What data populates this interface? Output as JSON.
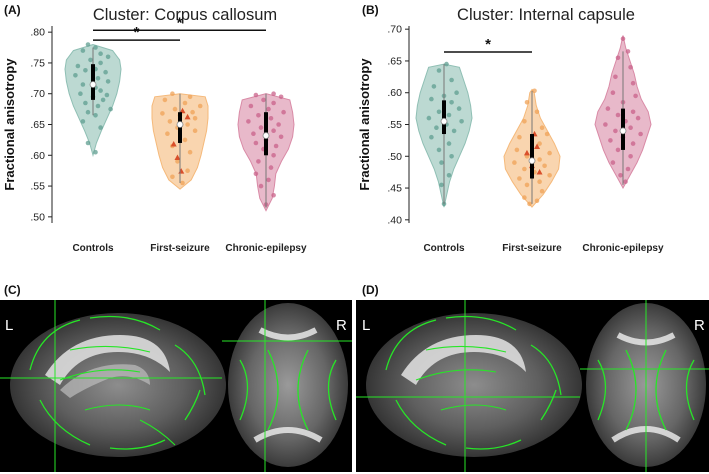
{
  "figure": {
    "panel_letters": {
      "a": "(A)",
      "b": "(B)",
      "c": "(C)",
      "d": "(D)"
    },
    "image_labels": {
      "c_left": "L",
      "c_right": "R",
      "d_left": "L",
      "d_right": "R"
    }
  },
  "chart_data": [
    {
      "type": "violin",
      "panel": "A",
      "title": "Cluster: Corpus callosum",
      "xlabel": "",
      "ylabel": "Fractional anisotropy",
      "ylim": [
        0.49,
        0.81
      ],
      "yticks": [
        0.5,
        0.55,
        0.6,
        0.65,
        0.7,
        0.75,
        0.8
      ],
      "ytick_labels": [
        ".50",
        ".55",
        ".60",
        ".65",
        ".70",
        ".75",
        ".80"
      ],
      "categories": [
        "Controls",
        "First-seizure",
        "Chronic-epilepsy"
      ],
      "colors": [
        "#8fbfb4",
        "#f5b97a",
        "#d98aa6"
      ],
      "point_colors": [
        "#5f9e90",
        "#efa257",
        "#c9628a"
      ],
      "violins": [
        {
          "min": 0.6,
          "max": 0.78,
          "profile": [
            [
              0.6,
              0.0
            ],
            [
              0.62,
              0.12
            ],
            [
              0.64,
              0.3
            ],
            [
              0.66,
              0.5
            ],
            [
              0.68,
              0.7
            ],
            [
              0.7,
              0.85
            ],
            [
              0.72,
              0.95
            ],
            [
              0.74,
              1.0
            ],
            [
              0.755,
              0.95
            ],
            [
              0.77,
              0.7
            ],
            [
              0.78,
              0.0
            ]
          ],
          "median": 0.715,
          "q1": 0.69,
          "q3": 0.748,
          "whisker": [
            0.665,
            0.775
          ]
        },
        {
          "min": 0.545,
          "max": 0.7,
          "profile": [
            [
              0.545,
              0.0
            ],
            [
              0.56,
              0.4
            ],
            [
              0.58,
              0.62
            ],
            [
              0.6,
              0.75
            ],
            [
              0.62,
              0.85
            ],
            [
              0.64,
              0.95
            ],
            [
              0.66,
              1.0
            ],
            [
              0.68,
              1.0
            ],
            [
              0.695,
              0.9
            ],
            [
              0.7,
              0.0
            ]
          ],
          "median": 0.65,
          "q1": 0.62,
          "q3": 0.67,
          "whisker": [
            0.555,
            0.7
          ]
        },
        {
          "min": 0.51,
          "max": 0.7,
          "profile": [
            [
              0.51,
              0.0
            ],
            [
              0.53,
              0.22
            ],
            [
              0.55,
              0.3
            ],
            [
              0.57,
              0.35
            ],
            [
              0.59,
              0.55
            ],
            [
              0.61,
              0.8
            ],
            [
              0.63,
              0.95
            ],
            [
              0.65,
              1.0
            ],
            [
              0.67,
              0.95
            ],
            [
              0.69,
              0.85
            ],
            [
              0.7,
              0.0
            ]
          ],
          "median": 0.632,
          "q1": 0.6,
          "q3": 0.67,
          "whisker": [
            0.515,
            0.7
          ]
        }
      ],
      "points": [
        [
          [
            0.78,
            -0.2
          ],
          [
            0.775,
            0.1
          ],
          [
            0.77,
            -0.4
          ],
          [
            0.765,
            0.3
          ],
          [
            0.76,
            0.6
          ],
          [
            0.755,
            -0.1
          ],
          [
            0.75,
            0.3
          ],
          [
            0.745,
            -0.6
          ],
          [
            0.74,
            0.1
          ],
          [
            0.738,
            -0.3
          ],
          [
            0.735,
            0.5
          ],
          [
            0.73,
            -0.7
          ],
          [
            0.725,
            0.2
          ],
          [
            0.72,
            0.6
          ],
          [
            0.715,
            -0.4
          ],
          [
            0.71,
            0.1
          ],
          [
            0.705,
            0.3
          ],
          [
            0.7,
            -0.5
          ],
          [
            0.698,
            0.55
          ],
          [
            0.695,
            0.0
          ],
          [
            0.69,
            0.4
          ],
          [
            0.685,
            -0.3
          ],
          [
            0.68,
            0.2
          ],
          [
            0.675,
            0.7
          ],
          [
            0.67,
            -0.2
          ],
          [
            0.665,
            0.1
          ],
          [
            0.655,
            -0.4
          ],
          [
            0.645,
            0.3
          ],
          [
            0.62,
            -0.2
          ],
          [
            0.605,
            0.1
          ]
        ],
        [
          [
            0.7,
            -0.3
          ],
          [
            0.695,
            0.4
          ],
          [
            0.69,
            -0.6
          ],
          [
            0.685,
            0.2
          ],
          [
            0.68,
            0.8
          ],
          [
            0.675,
            -0.2
          ],
          [
            0.67,
            0.5
          ],
          [
            0.668,
            -0.7
          ],
          [
            0.665,
            0.0
          ],
          [
            0.66,
            0.6
          ],
          [
            0.655,
            -0.4
          ],
          [
            0.65,
            0.3
          ],
          [
            0.645,
            -0.1
          ],
          [
            0.64,
            0.6
          ],
          [
            0.635,
            -0.5
          ],
          [
            0.625,
            0.2
          ],
          [
            0.615,
            -0.3
          ],
          [
            0.605,
            0.4
          ],
          [
            0.59,
            -0.1
          ],
          [
            0.575,
            0.3
          ],
          [
            0.565,
            -0.3
          ],
          [
            0.555,
            0.1
          ]
        ],
        [
          [
            0.7,
            0.3
          ],
          [
            0.698,
            -0.4
          ],
          [
            0.695,
            0.6
          ],
          [
            0.69,
            -0.1
          ],
          [
            0.685,
            0.3
          ],
          [
            0.68,
            -0.6
          ],
          [
            0.675,
            0.1
          ],
          [
            0.67,
            0.7
          ],
          [
            0.665,
            -0.3
          ],
          [
            0.66,
            0.2
          ],
          [
            0.655,
            -0.7
          ],
          [
            0.65,
            0.5
          ],
          [
            0.645,
            -0.2
          ],
          [
            0.64,
            0.3
          ],
          [
            0.635,
            -0.5
          ],
          [
            0.63,
            0.6
          ],
          [
            0.625,
            0.0
          ],
          [
            0.62,
            -0.4
          ],
          [
            0.615,
            0.4
          ],
          [
            0.61,
            -0.1
          ],
          [
            0.6,
            0.3
          ],
          [
            0.59,
            -0.3
          ],
          [
            0.58,
            0.2
          ],
          [
            0.57,
            -0.4
          ],
          [
            0.56,
            0.1
          ],
          [
            0.55,
            -0.2
          ],
          [
            0.535,
            0.3
          ],
          [
            0.52,
            0.0
          ]
        ]
      ],
      "triangles": [
        null,
        [
          [
            0.672,
            0.1
          ],
          [
            0.662,
            0.3
          ],
          [
            0.618,
            -0.25
          ],
          [
            0.596,
            -0.1
          ],
          [
            0.574,
            0.05
          ]
        ],
        null
      ],
      "sig_bars": [
        {
          "from": 0,
          "to": 2,
          "y": 0.803,
          "label": "*"
        },
        {
          "from": 0,
          "to": 1,
          "y": 0.787,
          "label": "*"
        }
      ]
    },
    {
      "type": "violin",
      "panel": "B",
      "title": "Cluster: Internal capsule",
      "xlabel": "",
      "ylabel": "Fractional anisotropy",
      "ylim": [
        0.395,
        0.705
      ],
      "yticks": [
        0.4,
        0.45,
        0.5,
        0.55,
        0.6,
        0.65,
        0.7
      ],
      "ytick_labels": [
        ".40",
        ".45",
        ".50",
        ".55",
        ".60",
        ".65",
        ".70"
      ],
      "categories": [
        "Controls",
        "First-seizure",
        "Chronic-epilepsy"
      ],
      "colors": [
        "#8fbfb4",
        "#f5b97a",
        "#d98aa6"
      ],
      "point_colors": [
        "#5f9e90",
        "#efa257",
        "#c9628a"
      ],
      "violins": [
        {
          "min": 0.42,
          "max": 0.645,
          "profile": [
            [
              0.42,
              0.0
            ],
            [
              0.44,
              0.1
            ],
            [
              0.46,
              0.2
            ],
            [
              0.48,
              0.35
            ],
            [
              0.5,
              0.55
            ],
            [
              0.52,
              0.75
            ],
            [
              0.54,
              0.9
            ],
            [
              0.56,
              1.0
            ],
            [
              0.58,
              0.95
            ],
            [
              0.6,
              0.85
            ],
            [
              0.62,
              0.7
            ],
            [
              0.64,
              0.55
            ],
            [
              0.645,
              0.0
            ]
          ],
          "median": 0.555,
          "q1": 0.535,
          "q3": 0.588,
          "whisker": [
            0.425,
            0.645
          ]
        },
        {
          "min": 0.42,
          "max": 0.605,
          "profile": [
            [
              0.42,
              0.0
            ],
            [
              0.44,
              0.4
            ],
            [
              0.46,
              0.7
            ],
            [
              0.48,
              0.95
            ],
            [
              0.5,
              1.0
            ],
            [
              0.52,
              0.8
            ],
            [
              0.54,
              0.55
            ],
            [
              0.56,
              0.3
            ],
            [
              0.58,
              0.15
            ],
            [
              0.6,
              0.08
            ],
            [
              0.605,
              0.0
            ]
          ],
          "median": 0.493,
          "q1": 0.465,
          "q3": 0.535,
          "whisker": [
            0.425,
            0.603
          ]
        },
        {
          "min": 0.45,
          "max": 0.69,
          "profile": [
            [
              0.45,
              0.0
            ],
            [
              0.47,
              0.25
            ],
            [
              0.49,
              0.5
            ],
            [
              0.51,
              0.7
            ],
            [
              0.53,
              0.85
            ],
            [
              0.55,
              1.0
            ],
            [
              0.57,
              0.9
            ],
            [
              0.59,
              0.65
            ],
            [
              0.61,
              0.5
            ],
            [
              0.63,
              0.4
            ],
            [
              0.65,
              0.25
            ],
            [
              0.67,
              0.1
            ],
            [
              0.69,
              0.0
            ]
          ],
          "median": 0.54,
          "q1": 0.51,
          "q3": 0.575,
          "whisker": [
            0.455,
            0.665
          ]
        }
      ],
      "points": [
        [
          [
            0.645,
            0.1
          ],
          [
            0.635,
            -0.2
          ],
          [
            0.62,
            0.3
          ],
          [
            0.61,
            -0.4
          ],
          [
            0.6,
            0.5
          ],
          [
            0.595,
            0.0
          ],
          [
            0.59,
            -0.5
          ],
          [
            0.585,
            0.3
          ],
          [
            0.575,
            0.6
          ],
          [
            0.57,
            -0.2
          ],
          [
            0.565,
            0.2
          ],
          [
            0.56,
            -0.6
          ],
          [
            0.555,
            0.7
          ],
          [
            0.55,
            0.1
          ],
          [
            0.545,
            -0.3
          ],
          [
            0.54,
            0.4
          ],
          [
            0.53,
            -0.5
          ],
          [
            0.52,
            0.2
          ],
          [
            0.51,
            -0.2
          ],
          [
            0.5,
            0.3
          ],
          [
            0.49,
            -0.1
          ],
          [
            0.47,
            0.2
          ],
          [
            0.455,
            -0.1
          ],
          [
            0.425,
            0.0
          ]
        ],
        [
          [
            0.603,
            0.1
          ],
          [
            0.585,
            -0.2
          ],
          [
            0.57,
            0.2
          ],
          [
            0.555,
            -0.3
          ],
          [
            0.545,
            0.4
          ],
          [
            0.535,
            0.6
          ],
          [
            0.53,
            -0.5
          ],
          [
            0.52,
            0.3
          ],
          [
            0.51,
            -0.6
          ],
          [
            0.505,
            0.7
          ],
          [
            0.5,
            -0.2
          ],
          [
            0.495,
            0.3
          ],
          [
            0.49,
            -0.7
          ],
          [
            0.485,
            0.5
          ],
          [
            0.48,
            -0.3
          ],
          [
            0.475,
            0.1
          ],
          [
            0.47,
            0.7
          ],
          [
            0.465,
            -0.5
          ],
          [
            0.46,
            0.3
          ],
          [
            0.455,
            -0.2
          ],
          [
            0.445,
            0.4
          ],
          [
            0.435,
            -0.3
          ],
          [
            0.43,
            0.2
          ],
          [
            0.425,
            -0.1
          ]
        ],
        [
          [
            0.685,
            0.0
          ],
          [
            0.665,
            0.2
          ],
          [
            0.655,
            -0.2
          ],
          [
            0.64,
            0.3
          ],
          [
            0.625,
            -0.3
          ],
          [
            0.615,
            0.4
          ],
          [
            0.6,
            -0.4
          ],
          [
            0.595,
            0.5
          ],
          [
            0.585,
            0.0
          ],
          [
            0.575,
            -0.6
          ],
          [
            0.57,
            0.4
          ],
          [
            0.565,
            -0.2
          ],
          [
            0.56,
            0.6
          ],
          [
            0.555,
            0.1
          ],
          [
            0.55,
            -0.7
          ],
          [
            0.545,
            0.3
          ],
          [
            0.54,
            -0.3
          ],
          [
            0.535,
            0.7
          ],
          [
            0.53,
            0.0
          ],
          [
            0.525,
            -0.5
          ],
          [
            0.52,
            0.4
          ],
          [
            0.51,
            -0.2
          ],
          [
            0.5,
            0.3
          ],
          [
            0.49,
            -0.4
          ],
          [
            0.48,
            0.2
          ],
          [
            0.47,
            -0.1
          ],
          [
            0.46,
            0.1
          ]
        ]
      ],
      "triangles": [
        null,
        [
          [
            0.535,
            0.1
          ],
          [
            0.515,
            0.2
          ],
          [
            0.505,
            -0.2
          ],
          [
            0.485,
            0.0
          ],
          [
            0.475,
            0.3
          ]
        ],
        null
      ],
      "sig_bars": [
        {
          "from": 0,
          "to": 1,
          "y": 0.664,
          "label": "*"
        }
      ]
    }
  ]
}
